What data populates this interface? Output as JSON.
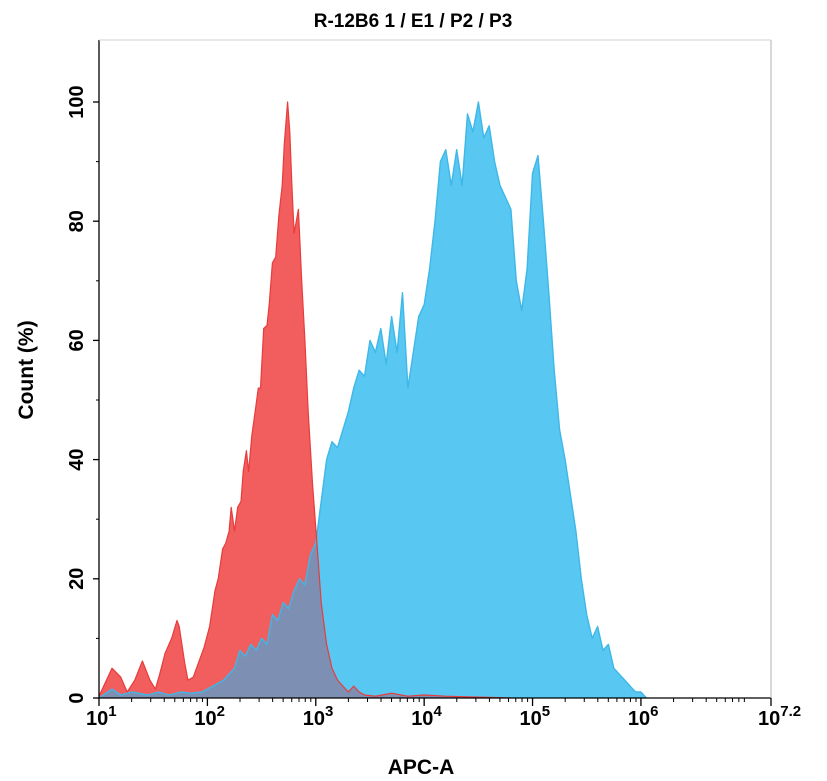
{
  "chart_data": {
    "type": "area",
    "title": "R-12B6 1 / E1 / P2 / P3",
    "xlabel": "APC-A",
    "ylabel": "Count  (%)",
    "xscale": "log",
    "xlim_log10": [
      1,
      7.2
    ],
    "ylim": [
      0,
      100
    ],
    "x_ticks": [
      {
        "base": "10",
        "exp": "1"
      },
      {
        "base": "10",
        "exp": "2"
      },
      {
        "base": "10",
        "exp": "3"
      },
      {
        "base": "10",
        "exp": "4"
      },
      {
        "base": "10",
        "exp": "5"
      },
      {
        "base": "10",
        "exp": "6"
      },
      {
        "base": "10",
        "exp": "7.2"
      }
    ],
    "y_ticks": [
      "0",
      "20",
      "40",
      "60",
      "80",
      "100"
    ],
    "grid": false,
    "legend": "none",
    "series": [
      {
        "color": "#f25d5d",
        "fill": "#f25d5d",
        "log10_x": [
          1.0,
          1.12,
          1.2,
          1.26,
          1.33,
          1.4,
          1.47,
          1.52,
          1.56,
          1.61,
          1.67,
          1.72,
          1.74,
          1.79,
          1.82,
          1.87,
          1.92,
          1.97,
          2.02,
          2.07,
          2.1,
          2.14,
          2.17,
          2.2,
          2.22,
          2.25,
          2.28,
          2.31,
          2.33,
          2.36,
          2.38,
          2.41,
          2.44,
          2.47,
          2.49,
          2.52,
          2.55,
          2.57,
          2.6,
          2.63,
          2.66,
          2.69,
          2.71,
          2.74,
          2.76,
          2.78,
          2.8,
          2.82,
          2.84,
          2.87,
          2.9,
          2.93,
          2.97,
          3.01,
          3.05,
          3.1,
          3.15,
          3.2,
          3.25,
          3.3,
          3.35,
          3.4,
          3.45,
          3.55,
          3.7,
          3.85,
          4.0,
          4.2,
          4.4,
          4.6,
          4.8
        ],
        "y": [
          0.3,
          5.0,
          3.5,
          1.0,
          3.0,
          6.2,
          3.0,
          1.5,
          4.0,
          7.5,
          10.0,
          13.0,
          12.0,
          6.0,
          3.0,
          3.5,
          6.0,
          8.5,
          12.0,
          18.0,
          20.0,
          25.0,
          26.0,
          28.0,
          32.0,
          28.0,
          32.0,
          33.0,
          38.0,
          41.5,
          38.0,
          44.0,
          48.0,
          52.0,
          52.0,
          62.0,
          62.5,
          66.0,
          73.0,
          74.0,
          81.0,
          86.0,
          93.0,
          100.0,
          95.0,
          86.0,
          78.0,
          80.0,
          82.0,
          70.0,
          60.0,
          48.0,
          36.0,
          26.0,
          16.0,
          9.0,
          5.0,
          3.0,
          2.0,
          1.0,
          2.0,
          1.0,
          0.5,
          0.3,
          0.8,
          0.3,
          0.5,
          0.3,
          0.2,
          0.1,
          0.0
        ]
      },
      {
        "color": "#3eb8e8",
        "fill": "#58c7f1",
        "log10_x": [
          1.0,
          1.12,
          1.2,
          1.3,
          1.45,
          1.55,
          1.65,
          1.75,
          1.85,
          1.95,
          2.05,
          2.15,
          2.25,
          2.3,
          2.35,
          2.4,
          2.45,
          2.5,
          2.55,
          2.6,
          2.65,
          2.7,
          2.75,
          2.8,
          2.85,
          2.9,
          2.95,
          3.0,
          3.05,
          3.1,
          3.15,
          3.2,
          3.25,
          3.3,
          3.35,
          3.4,
          3.45,
          3.5,
          3.55,
          3.6,
          3.65,
          3.7,
          3.75,
          3.8,
          3.85,
          3.9,
          3.95,
          4.0,
          4.05,
          4.1,
          4.15,
          4.2,
          4.25,
          4.3,
          4.35,
          4.4,
          4.45,
          4.5,
          4.55,
          4.6,
          4.65,
          4.7,
          4.75,
          4.8,
          4.85,
          4.9,
          4.95,
          5.0,
          5.05,
          5.1,
          5.15,
          5.2,
          5.25,
          5.3,
          5.35,
          5.4,
          5.45,
          5.5,
          5.55,
          5.6,
          5.65,
          5.7,
          5.75,
          5.8,
          5.85,
          5.9,
          5.95,
          6.0,
          6.05
        ],
        "y": [
          0.0,
          1.5,
          0.5,
          1.0,
          0.5,
          1.0,
          0.5,
          1.0,
          0.8,
          1.0,
          2.0,
          3.0,
          5.0,
          8.0,
          7.0,
          9.0,
          8.0,
          10.0,
          9.0,
          14.0,
          13.0,
          16.0,
          15.0,
          18.0,
          20.0,
          19.0,
          24.0,
          26.0,
          33.0,
          40.0,
          43.0,
          42.0,
          45.0,
          48.0,
          52.0,
          55.0,
          54.0,
          60.0,
          58.0,
          62.0,
          56.0,
          64.0,
          58.0,
          68.0,
          52.0,
          58.0,
          64.0,
          66.0,
          72.0,
          80.0,
          90.0,
          92.0,
          86.0,
          92.0,
          86.0,
          98.0,
          95.0,
          100.0,
          94.0,
          96.0,
          90.0,
          86.0,
          84.0,
          82.0,
          70.0,
          65.0,
          72.0,
          88.0,
          91.0,
          80.0,
          68.0,
          55.0,
          45.0,
          40.0,
          34.0,
          28.0,
          20.0,
          14.0,
          10.0,
          12.0,
          8.0,
          9.0,
          5.0,
          4.0,
          3.0,
          2.0,
          1.0,
          1.0,
          0.0
        ]
      }
    ]
  },
  "overlap_color": "#7d8fb3",
  "axis_color": "#000000"
}
